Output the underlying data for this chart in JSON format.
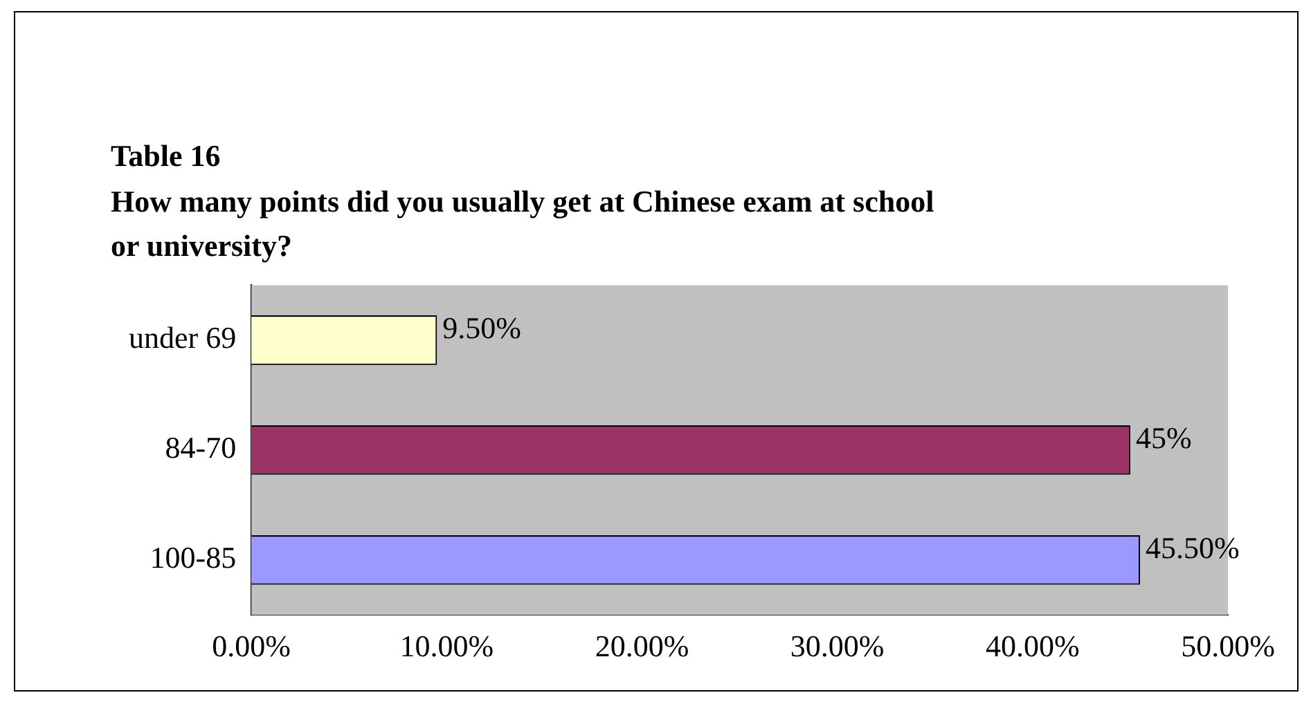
{
  "chart_data": {
    "type": "bar",
    "orientation": "horizontal",
    "title": "Table 16",
    "subtitle": "How many points did you usually get at Chinese exam at school or university?",
    "categories": [
      "under 69",
      "84-70",
      "100-85"
    ],
    "values": [
      9.5,
      45,
      45.5
    ],
    "colors": [
      "#ffffcc",
      "#993366",
      "#9999ff"
    ],
    "value_labels": [
      "9.50%",
      "45%",
      "45.50%"
    ],
    "xlim": [
      0,
      50
    ],
    "xticks": [
      {
        "value": 0,
        "label": "0.00%"
      },
      {
        "value": 10,
        "label": "10.00%"
      },
      {
        "value": 20,
        "label": "20.00%"
      },
      {
        "value": 30,
        "label": "30.00%"
      },
      {
        "value": 40,
        "label": "40.00%"
      },
      {
        "value": 50,
        "label": "50.00%"
      }
    ],
    "grid": false,
    "legend": false
  }
}
